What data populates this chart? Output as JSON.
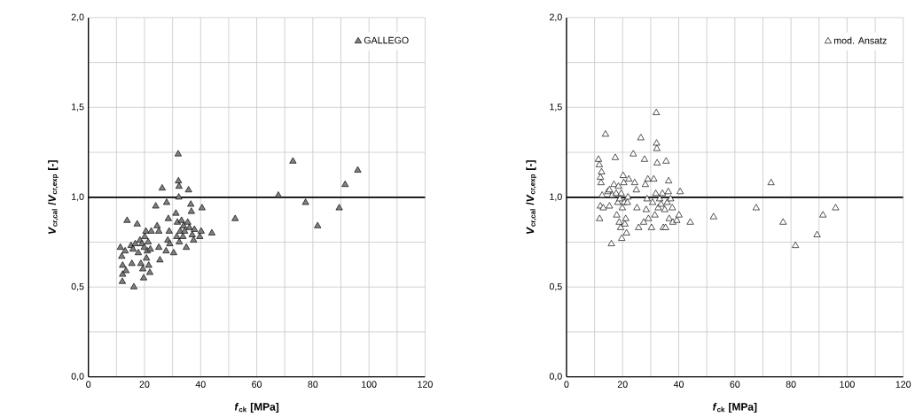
{
  "chart_data": [
    {
      "type": "scatter",
      "xlabel": "*f*$_{ck}$ [MPa]",
      "ylabel": "*V*$_{cr,cal}$ /*V*$_{cr,exp}$ [-]",
      "xlim": [
        0,
        120
      ],
      "ylim": [
        0,
        2
      ],
      "xticks": [
        0,
        {
          "value": 10,
          "label": null
        },
        20,
        {
          "value": 30,
          "label": null
        },
        40,
        {
          "value": 50,
          "label": null
        },
        60,
        {
          "value": 70,
          "label": null
        },
        80,
        {
          "value": 90,
          "label": null
        },
        100,
        {
          "value": 110,
          "label": null
        },
        120
      ],
      "yticks": [
        {
          "value": 0,
          "label": "0,0"
        },
        {
          "value": 0.25,
          "label": null
        },
        {
          "value": 0.5,
          "label": "0,5"
        },
        {
          "value": 0.75,
          "label": null
        },
        {
          "value": 1.0,
          "label": "1,0"
        },
        {
          "value": 1.25,
          "label": null
        },
        {
          "value": 1.5,
          "label": "1,5"
        },
        {
          "value": 1.75,
          "label": null
        },
        {
          "value": 2.0,
          "label": "2,0"
        }
      ],
      "grid": true,
      "legend": "top right",
      "marker": "triangle",
      "ref_lines": [
        {
          "axis": "y",
          "value": 1.0,
          "color": "#000000"
        }
      ],
      "series": [
        {
          "name": "GALLEGO",
          "color": "#808080",
          "x": [
            11.4,
            11.9,
            12.2,
            12.2,
            12.1,
            13.1,
            13.4,
            13.8,
            15.2,
            15.5,
            16.2,
            15.9,
            16.7,
            17.4,
            17.8,
            18.4,
            18.7,
            19.1,
            19.4,
            19.7,
            19.9,
            20.1,
            20.5,
            20.7,
            21.0,
            21.3,
            21.5,
            21.9,
            22.1,
            22.4,
            24.0,
            24.5,
            25.1,
            25.1,
            25.5,
            26.3,
            27.9,
            27.7,
            28.3,
            28.5,
            28.8,
            29.0,
            30.4,
            31.2,
            31.5,
            31.7,
            32.0,
            32.1,
            32.3,
            32.2,
            32.4,
            32.7,
            33.2,
            33.7,
            33.9,
            34.3,
            34.9,
            35.4,
            35.7,
            36.0,
            36.5,
            36.7,
            37.0,
            37.5,
            37.8,
            39.7,
            40.2,
            40.5,
            44.0,
            52.3,
            67.7,
            72.9,
            77.4,
            81.7,
            89.4,
            91.5,
            96.0
          ],
          "values": [
            0.72,
            0.67,
            0.62,
            0.57,
            0.53,
            0.7,
            0.59,
            0.87,
            0.73,
            0.63,
            0.5,
            0.71,
            0.74,
            0.85,
            0.69,
            0.76,
            0.63,
            0.74,
            0.6,
            0.55,
            0.72,
            0.78,
            0.81,
            0.66,
            0.7,
            0.75,
            0.62,
            0.58,
            0.71,
            0.81,
            0.95,
            0.84,
            0.81,
            0.72,
            0.65,
            1.05,
            0.97,
            0.7,
            0.76,
            0.88,
            0.81,
            0.74,
            0.69,
            0.91,
            0.78,
            0.86,
            1.24,
            1.09,
            1.06,
            1.0,
            0.75,
            0.81,
            0.87,
            0.78,
            0.84,
            0.81,
            0.72,
            0.86,
            1.04,
            0.83,
            0.96,
            0.92,
            0.79,
            0.76,
            0.82,
            0.78,
            0.81,
            0.94,
            0.8,
            0.88,
            1.01,
            1.2,
            0.97,
            0.84,
            0.94,
            1.07,
            1.15
          ]
        }
      ]
    },
    {
      "type": "scatter",
      "xlabel": "*f*$_{ck}$ [MPa]",
      "ylabel": "*V*$_{cr,cal}$ /*V*$_{cr,exp}$ [-]",
      "xlim": [
        0,
        120
      ],
      "ylim": [
        0,
        2
      ],
      "xticks": [
        0,
        {
          "value": 10,
          "label": null
        },
        20,
        {
          "value": 30,
          "label": null
        },
        40,
        {
          "value": 50,
          "label": null
        },
        60,
        {
          "value": 70,
          "label": null
        },
        80,
        {
          "value": 90,
          "label": null
        },
        100,
        {
          "value": 110,
          "label": null
        },
        120
      ],
      "yticks": [
        {
          "value": 0,
          "label": "0,0"
        },
        {
          "value": 0.25,
          "label": null
        },
        {
          "value": 0.5,
          "label": "0,5"
        },
        {
          "value": 0.75,
          "label": null
        },
        {
          "value": 1.0,
          "label": "1,0"
        },
        {
          "value": 1.25,
          "label": null
        },
        {
          "value": 1.5,
          "label": "1,5"
        },
        {
          "value": 1.75,
          "label": null
        },
        {
          "value": 2.0,
          "label": "2,0"
        }
      ],
      "grid": true,
      "legend": "top right",
      "marker": "triangle",
      "ref_lines": [
        {
          "axis": "y",
          "value": 1.0,
          "color": "#000000"
        }
      ],
      "series": [
        {
          "name": "mod. Ansatz",
          "color": "#ffffff",
          "x": [
            11.4,
            11.7,
            12.1,
            12.3,
            12.5,
            11.8,
            12.1,
            12.7,
            13.1,
            13.9,
            14.7,
            15.3,
            15.3,
            16.0,
            16.3,
            16.9,
            17.4,
            17.7,
            17.9,
            18.3,
            18.5,
            18.8,
            19.0,
            19.3,
            19.5,
            19.7,
            19.9,
            20.2,
            20.4,
            20.6,
            20.8,
            21.1,
            21.4,
            21.7,
            21.9,
            22.2,
            23.8,
            24.3,
            24.9,
            25.1,
            25.7,
            26.5,
            27.8,
            27.5,
            28.1,
            28.4,
            28.7,
            29.0,
            29.2,
            30.3,
            30.7,
            31.1,
            31.5,
            31.8,
            32.0,
            32.1,
            32.2,
            32.3,
            32.7,
            33.2,
            33.7,
            34.2,
            34.5,
            35.0,
            35.3,
            35.5,
            35.9,
            36.3,
            36.4,
            36.6,
            37.1,
            37.7,
            37.9,
            39.3,
            40.1,
            40.5,
            44.1,
            52.4,
            67.6,
            72.9,
            77.2,
            81.6,
            89.3,
            91.4,
            95.9
          ],
          "values": [
            1.21,
            1.18,
            1.11,
            1.08,
            1.14,
            0.88,
            0.95,
            1.01,
            0.94,
            1.35,
            1.03,
            1.04,
            0.95,
            0.74,
            1.01,
            1.07,
            1.22,
            1.02,
            0.9,
            0.97,
            1.06,
            0.86,
            0.99,
            0.83,
            1.02,
            0.77,
            0.94,
            1.12,
            1.08,
            0.97,
            0.85,
            0.88,
            0.8,
            0.97,
            1.0,
            1.1,
            1.24,
            1.08,
            1.04,
            0.94,
            0.83,
            1.33,
            1.21,
            0.86,
            1.07,
            0.93,
            0.99,
            1.1,
            0.88,
            0.83,
            0.97,
            1.1,
            0.9,
            1.02,
            1.47,
            1.3,
            1.27,
            1.19,
            0.94,
            0.99,
            0.96,
            1.02,
            0.83,
            0.93,
            0.83,
            1.2,
            0.97,
            1.03,
            1.09,
            0.88,
            0.99,
            0.94,
            0.86,
            0.87,
            0.9,
            1.03,
            0.86,
            0.89,
            0.94,
            1.08,
            0.86,
            0.73,
            0.79,
            0.9,
            0.94
          ]
        }
      ]
    }
  ]
}
